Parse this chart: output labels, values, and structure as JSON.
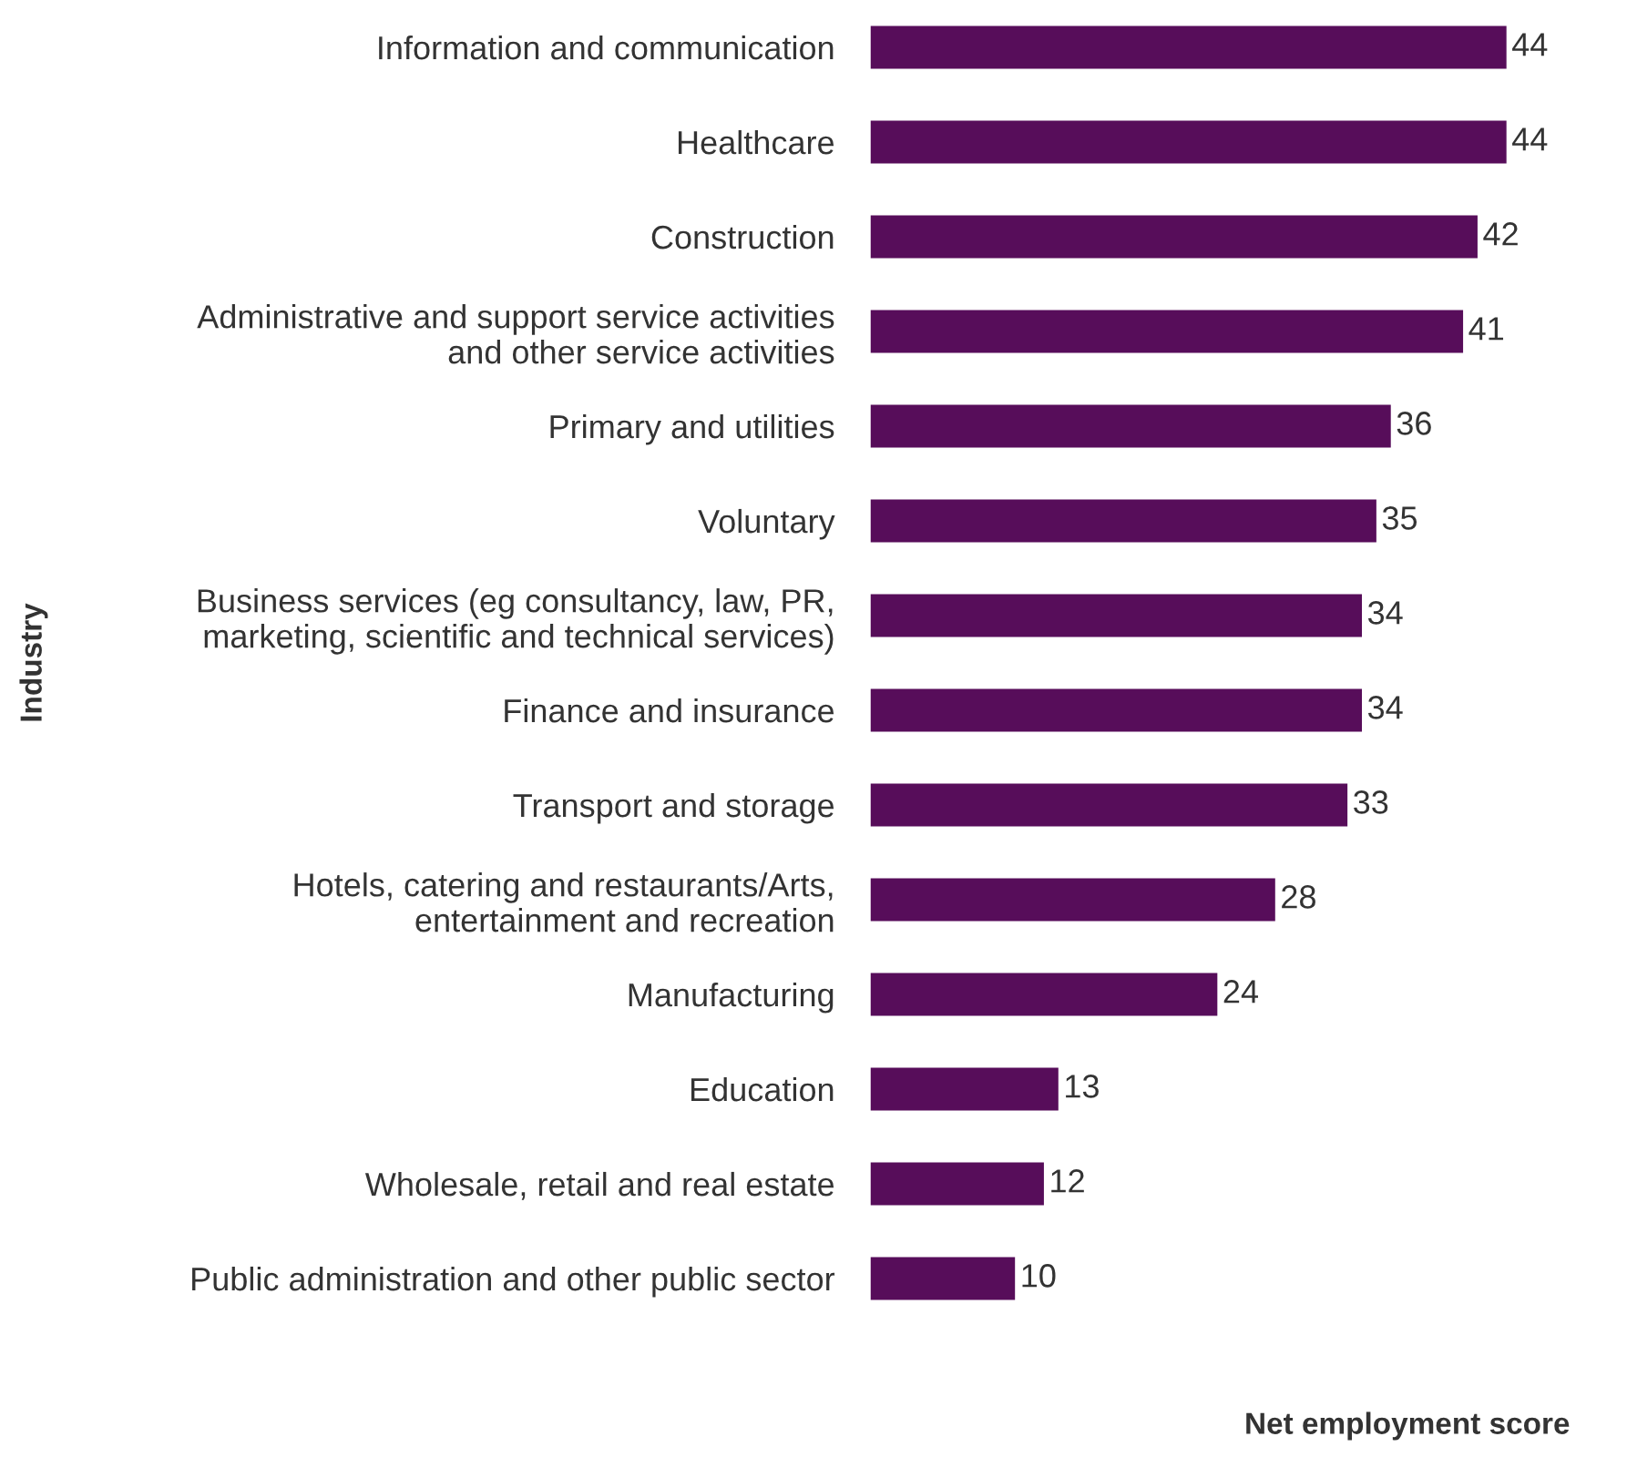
{
  "chart_data": {
    "type": "bar",
    "orientation": "horizontal",
    "xlabel": "Net employment score",
    "ylabel": "Industry",
    "categories": [
      "Information and communication",
      "Healthcare",
      "Construction",
      "Administrative and support service activities\nand other service activities",
      "Primary and utilities",
      "Voluntary",
      "Business services (eg consultancy, law, PR,\nmarketing, scientific and technical services)",
      "Finance and insurance",
      "Transport and storage",
      "Hotels, catering and restaurants/Arts,\nentertainment and recreation",
      "Manufacturing",
      "Education",
      "Wholesale, retail and real estate",
      "Public administration and other public sector"
    ],
    "values": [
      44,
      44,
      42,
      41,
      36,
      35,
      34,
      34,
      33,
      28,
      24,
      13,
      12,
      10
    ],
    "color": "#570d5a",
    "data_labels": true,
    "grid": false,
    "legend": false
  }
}
